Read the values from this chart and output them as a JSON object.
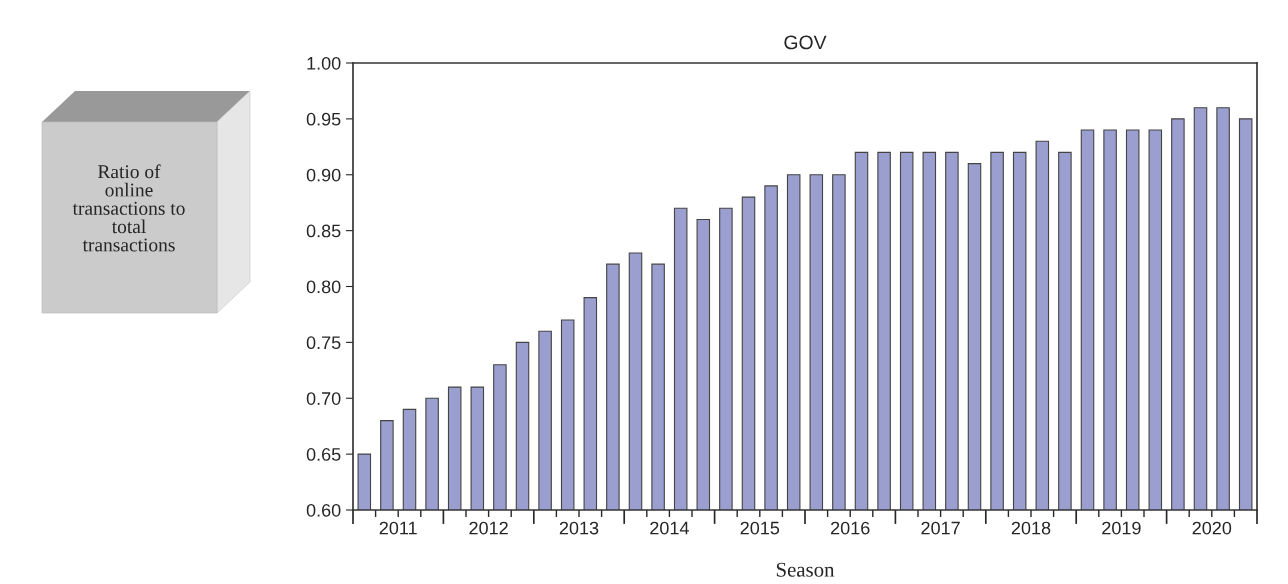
{
  "chart_data": {
    "type": "bar",
    "title": "GOV",
    "xlabel": "Season",
    "annotations": [
      "Ratio of\nonline\ntransactions to\ntotal\ntransactions"
    ],
    "categories": [
      null,
      "2011",
      null,
      null,
      null,
      "2012",
      null,
      null,
      null,
      "2013",
      null,
      null,
      null,
      "2014",
      null,
      null,
      null,
      "2015",
      null,
      null,
      null,
      "2016",
      null,
      null,
      null,
      "2017",
      null,
      null,
      null,
      "2018",
      null,
      null,
      null,
      "2019",
      null,
      null,
      null,
      "2020",
      null,
      null
    ],
    "values": [
      0.65,
      0.68,
      0.69,
      0.7,
      0.71,
      0.71,
      0.73,
      0.75,
      0.76,
      0.77,
      0.79,
      0.82,
      0.83,
      0.82,
      0.87,
      0.86,
      0.87,
      0.88,
      0.89,
      0.9,
      0.9,
      0.9,
      0.92,
      0.92,
      0.92,
      0.92,
      0.92,
      0.91,
      0.92,
      0.92,
      0.93,
      0.92,
      0.94,
      0.94,
      0.94,
      0.94,
      0.95,
      0.96,
      0.96,
      0.95
    ],
    "color": "#9a9fd0",
    "ylim": [
      0.6,
      1.0
    ],
    "yticks": [
      {
        "value": 0.6,
        "label": "0.60"
      },
      {
        "value": 0.65,
        "label": "0.65"
      },
      {
        "value": 0.7,
        "label": "0.70"
      },
      {
        "value": 0.75,
        "label": "0.75"
      },
      {
        "value": 0.8,
        "label": "0.80"
      },
      {
        "value": 0.85,
        "label": "0.85"
      },
      {
        "value": 0.9,
        "label": "0.90"
      },
      {
        "value": 0.95,
        "label": "0.95"
      },
      {
        "value": 1.0,
        "label": "1.00"
      }
    ],
    "grid": false,
    "legend": false
  }
}
